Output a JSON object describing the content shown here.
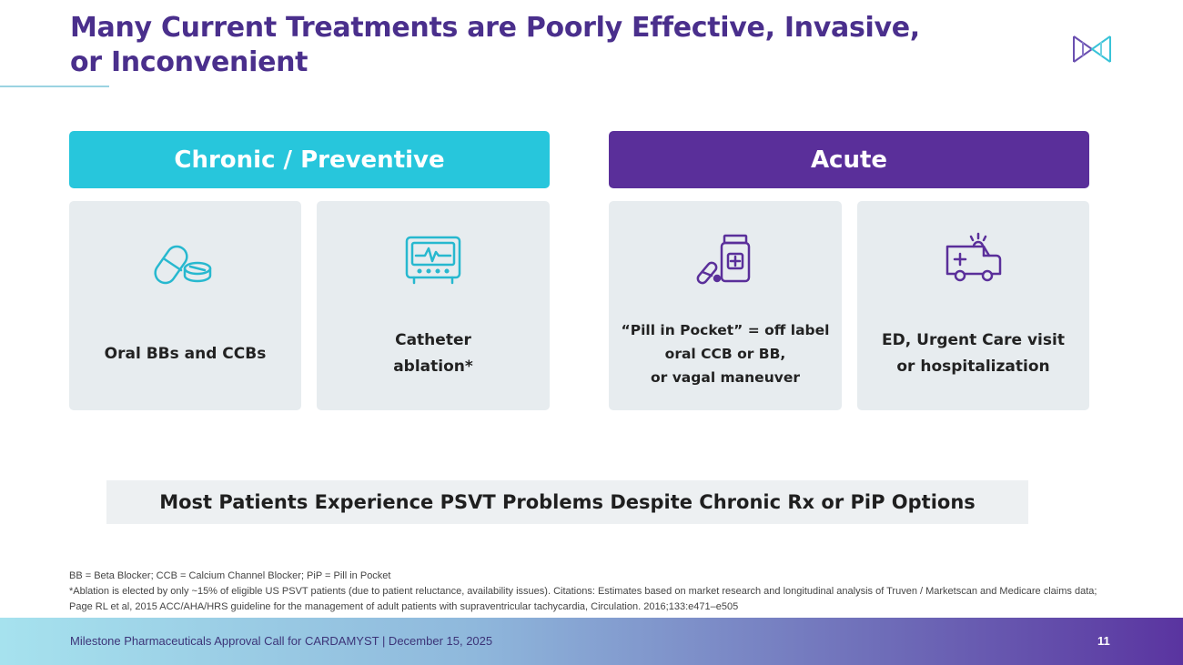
{
  "slide": {
    "title_line1": "Many Current Treatments are Poorly Effective, Invasive,",
    "title_line2": "or Inconvenient",
    "accent_colors": {
      "chronic": "#27c6dc",
      "acute": "#5a2f9a",
      "title": "#4a2f8c"
    }
  },
  "sections": {
    "chronic": {
      "label": "Chronic / Preventive"
    },
    "acute": {
      "label": "Acute"
    }
  },
  "cards": [
    {
      "icon": "pills-icon",
      "label": "Oral BBs and CCBs"
    },
    {
      "icon": "heart-monitor-icon",
      "label": "Catheter\nablation*"
    },
    {
      "icon": "medicine-bottle-icon",
      "label": "“Pill in Pocket” = off label\noral CCB or BB,\nor vagal maneuver"
    },
    {
      "icon": "ambulance-icon",
      "label": "ED, Urgent Care visit\nor hospitalization"
    }
  ],
  "callout": "Most Patients Experience PSVT Problems Despite Chronic Rx or PiP Options",
  "footnotes": {
    "line1": "BB = Beta Blocker; CCB = Calcium Channel Blocker; PiP = Pill in Pocket",
    "line2": "*Ablation is elected by only ~15% of eligible US PSVT patients (due to patient reluctance, availability issues). Citations: Estimates based on market research and longitudinal analysis of Truven / Marketscan and Medicare claims data; Page RL et al, 2015 ACC/AHA/HRS guideline for the management of adult patients with supraventricular tachycardia, Circulation. 2016;133:e471–e505"
  },
  "footer": {
    "text": "Milestone Pharmaceuticals Approval Call for CARDAMYST | December 15, 2025",
    "page_number": "11"
  }
}
